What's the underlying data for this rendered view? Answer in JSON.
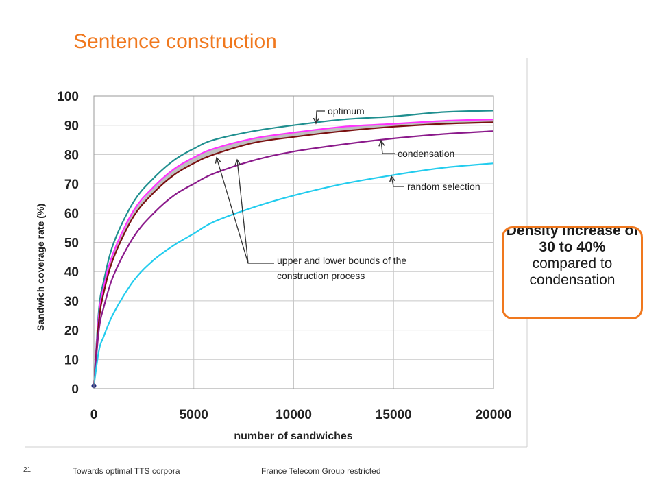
{
  "slide": {
    "title": "Sentence construction",
    "page_number": "21",
    "footer_left": "Towards optimal TTS corpora",
    "footer_center": "France Telecom Group restricted"
  },
  "callout": {
    "bold_text": "Density increase of 30 to 40%",
    "normal_text": "compared to condensation",
    "border_color": "#f0781e"
  },
  "chart_data": {
    "type": "line",
    "title": "",
    "xlabel": "number of sandwiches",
    "ylabel": "Sandwich coverage rate (%)",
    "xlim": [
      0,
      20000
    ],
    "ylim": [
      0,
      100
    ],
    "x_ticks": [
      "0",
      "5000",
      "10000",
      "15000",
      "20000"
    ],
    "y_ticks": [
      "0",
      "10",
      "20",
      "30",
      "40",
      "50",
      "60",
      "70",
      "80",
      "90",
      "100"
    ],
    "grid": true,
    "series": [
      {
        "name": "optimum",
        "color": "#1f8f8f",
        "x": [
          0,
          250,
          500,
          1000,
          2000,
          3000,
          4000,
          5000,
          6000,
          8000,
          10000,
          12500,
          15000,
          17500,
          20000
        ],
        "y": [
          1,
          27,
          37,
          50,
          64,
          72,
          78,
          82,
          85,
          88,
          90,
          92,
          93,
          94.5,
          95
        ]
      },
      {
        "name": "upper bound",
        "color": "#ff33ff",
        "x": [
          0,
          250,
          500,
          1000,
          2000,
          3000,
          4000,
          5000,
          6000,
          8000,
          10000,
          12500,
          15000,
          17500,
          20000
        ],
        "y": [
          1,
          25,
          35,
          47,
          61,
          69,
          75,
          79,
          82,
          85.5,
          87.5,
          89.5,
          90.5,
          91.5,
          92
        ]
      },
      {
        "name": "lower bound",
        "color": "#7a1010",
        "x": [
          0,
          250,
          500,
          1000,
          2000,
          3000,
          4000,
          5000,
          6000,
          8000,
          10000,
          12500,
          15000,
          17500,
          20000
        ],
        "y": [
          1,
          23,
          33,
          45,
          59,
          67,
          73,
          77,
          80,
          84,
          86,
          88,
          89.5,
          90.5,
          91
        ]
      },
      {
        "name": "condensation",
        "color": "#8b1a8b",
        "x": [
          0,
          250,
          500,
          1000,
          2000,
          3000,
          4000,
          5000,
          6000,
          8000,
          10000,
          12500,
          15000,
          17500,
          20000
        ],
        "y": [
          1,
          20,
          28,
          39,
          52,
          60,
          66,
          70,
          73.5,
          78,
          81,
          83.5,
          85.5,
          87,
          88
        ]
      },
      {
        "name": "random selection",
        "color": "#22ccee",
        "x": [
          0,
          250,
          500,
          1000,
          2000,
          3000,
          4000,
          5000,
          6000,
          8000,
          10000,
          12500,
          15000,
          17500,
          20000
        ],
        "y": [
          1,
          13,
          18,
          26,
          37,
          44,
          49,
          53,
          57,
          62,
          66,
          70,
          73,
          75.5,
          77
        ]
      }
    ],
    "annotations": [
      {
        "text": "optimum",
        "points_to": "optimum"
      },
      {
        "text": "condensation",
        "points_to": "condensation"
      },
      {
        "text": "random selection",
        "points_to": "random selection"
      },
      {
        "text_line1": "upper and lower bounds of the",
        "text_line2": "construction process",
        "points_to": [
          "upper bound",
          "lower bound"
        ]
      }
    ]
  }
}
